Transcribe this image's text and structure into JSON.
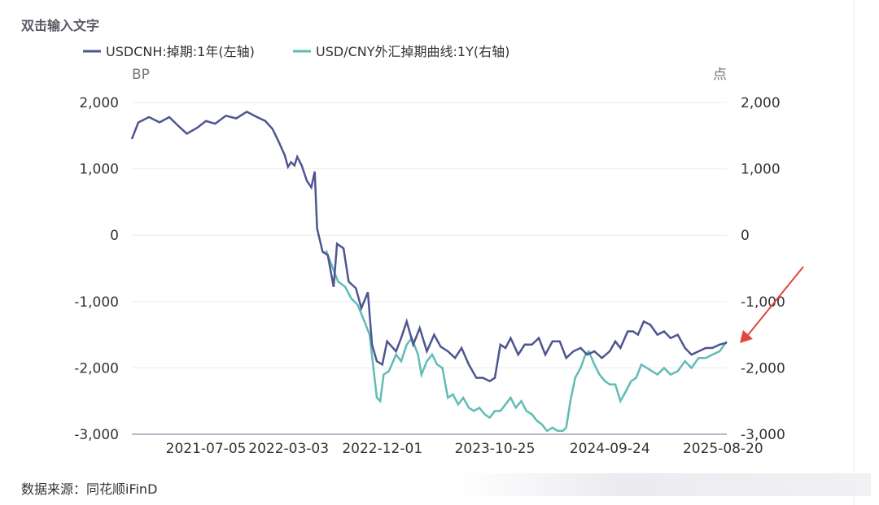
{
  "header": {
    "title": "双击输入文字"
  },
  "footer": {
    "source": "数据来源：同花顺iFinD"
  },
  "colors": {
    "series1": "#4f5590",
    "series2": "#5fbcb4",
    "arrow": "#e0473a",
    "grid": "#ececec",
    "axis": "#9aa3b5"
  },
  "chart_data": {
    "type": "line",
    "left_axis": {
      "unit": "BP",
      "ticks": [
        "2,000",
        "1,000",
        "0",
        "-1,000",
        "-2,000",
        "-3,000"
      ],
      "ylim": [
        -3000,
        2000
      ]
    },
    "right_axis": {
      "unit": "点",
      "ticks": [
        "2,000",
        "1,000",
        "0",
        "-1,000",
        "-2,000",
        "-3,000"
      ],
      "ylim": [
        -3000,
        2000
      ]
    },
    "x_ticks": [
      "2021-07-05",
      "2022-03-03",
      "2022-12-01",
      "2023-10-25",
      "2024-09-24",
      "2025-08-20"
    ],
    "x_tick_values": [
      "2021-07-05",
      "2022-03-03",
      "2022-12-01",
      "2023-10-25",
      "2024-09-24",
      "2025-08-20"
    ],
    "xlim": [
      "2020-12-01",
      "2025-08-31"
    ],
    "legend_position": "top-left",
    "series": [
      {
        "name": "USDCNH:掉期:1年(左轴)",
        "axis": "left",
        "points": [
          [
            "2020-12-01",
            1450
          ],
          [
            "2020-12-20",
            1700
          ],
          [
            "2021-01-20",
            1780
          ],
          [
            "2021-02-20",
            1700
          ],
          [
            "2021-03-20",
            1780
          ],
          [
            "2021-04-15",
            1650
          ],
          [
            "2021-05-10",
            1530
          ],
          [
            "2021-06-10",
            1620
          ],
          [
            "2021-07-05",
            1720
          ],
          [
            "2021-08-01",
            1680
          ],
          [
            "2021-09-01",
            1800
          ],
          [
            "2021-10-01",
            1760
          ],
          [
            "2021-11-01",
            1860
          ],
          [
            "2021-12-01",
            1780
          ],
          [
            "2021-12-25",
            1720
          ],
          [
            "2022-01-15",
            1600
          ],
          [
            "2022-02-01",
            1420
          ],
          [
            "2022-02-20",
            1200
          ],
          [
            "2022-03-01",
            1030
          ],
          [
            "2022-03-10",
            1100
          ],
          [
            "2022-03-20",
            1050
          ],
          [
            "2022-03-28",
            1180
          ],
          [
            "2022-04-10",
            1050
          ],
          [
            "2022-04-25",
            820
          ],
          [
            "2022-05-08",
            720
          ],
          [
            "2022-05-18",
            960
          ],
          [
            "2022-05-25",
            100
          ],
          [
            "2022-06-10",
            -250
          ],
          [
            "2022-06-25",
            -300
          ],
          [
            "2022-07-12",
            -780
          ],
          [
            "2022-07-22",
            -130
          ],
          [
            "2022-08-10",
            -200
          ],
          [
            "2022-08-25",
            -700
          ],
          [
            "2022-09-15",
            -800
          ],
          [
            "2022-10-01",
            -1100
          ],
          [
            "2022-10-20",
            -860
          ],
          [
            "2022-11-01",
            -1650
          ],
          [
            "2022-11-15",
            -1900
          ],
          [
            "2022-12-01",
            -1950
          ],
          [
            "2022-12-15",
            -1600
          ],
          [
            "2023-01-10",
            -1750
          ],
          [
            "2023-01-25",
            -1550
          ],
          [
            "2023-02-10",
            -1300
          ],
          [
            "2023-03-01",
            -1650
          ],
          [
            "2023-03-20",
            -1400
          ],
          [
            "2023-04-10",
            -1750
          ],
          [
            "2023-05-01",
            -1500
          ],
          [
            "2023-05-20",
            -1680
          ],
          [
            "2023-06-10",
            -1750
          ],
          [
            "2023-07-01",
            -1850
          ],
          [
            "2023-07-20",
            -1700
          ],
          [
            "2023-08-10",
            -1950
          ],
          [
            "2023-09-01",
            -2150
          ],
          [
            "2023-09-20",
            -2150
          ],
          [
            "2023-10-10",
            -2200
          ],
          [
            "2023-10-25",
            -2150
          ],
          [
            "2023-11-10",
            -1650
          ],
          [
            "2023-11-25",
            -1700
          ],
          [
            "2023-12-10",
            -1550
          ],
          [
            "2024-01-01",
            -1800
          ],
          [
            "2024-01-20",
            -1650
          ],
          [
            "2024-02-10",
            -1650
          ],
          [
            "2024-03-01",
            -1550
          ],
          [
            "2024-03-20",
            -1800
          ],
          [
            "2024-04-10",
            -1600
          ],
          [
            "2024-05-01",
            -1600
          ],
          [
            "2024-05-20",
            -1850
          ],
          [
            "2024-06-10",
            -1750
          ],
          [
            "2024-07-01",
            -1700
          ],
          [
            "2024-07-20",
            -1800
          ],
          [
            "2024-08-10",
            -1750
          ],
          [
            "2024-09-01",
            -1850
          ],
          [
            "2024-09-24",
            -1750
          ],
          [
            "2024-10-10",
            -1600
          ],
          [
            "2024-10-25",
            -1700
          ],
          [
            "2024-11-15",
            -1450
          ],
          [
            "2024-12-01",
            -1450
          ],
          [
            "2024-12-15",
            -1500
          ],
          [
            "2025-01-01",
            -1300
          ],
          [
            "2025-01-20",
            -1350
          ],
          [
            "2025-02-10",
            -1500
          ],
          [
            "2025-03-01",
            -1450
          ],
          [
            "2025-03-20",
            -1550
          ],
          [
            "2025-04-10",
            -1500
          ],
          [
            "2025-05-01",
            -1700
          ],
          [
            "2025-05-20",
            -1800
          ],
          [
            "2025-06-10",
            -1750
          ],
          [
            "2025-07-01",
            -1700
          ],
          [
            "2025-07-20",
            -1700
          ],
          [
            "2025-08-10",
            -1650
          ],
          [
            "2025-08-31",
            -1620
          ]
        ]
      },
      {
        "name": "USD/CNY外汇掉期曲线:1Y(右轴)",
        "axis": "right",
        "points": [
          [
            "2022-06-20",
            -230
          ],
          [
            "2022-07-10",
            -500
          ],
          [
            "2022-07-25",
            -700
          ],
          [
            "2022-08-15",
            -780
          ],
          [
            "2022-09-01",
            -950
          ],
          [
            "2022-09-20",
            -1050
          ],
          [
            "2022-10-10",
            -1300
          ],
          [
            "2022-10-25",
            -1500
          ],
          [
            "2022-11-05",
            -2000
          ],
          [
            "2022-11-15",
            -2450
          ],
          [
            "2022-11-25",
            -2500
          ],
          [
            "2022-12-05",
            -2100
          ],
          [
            "2022-12-20",
            -2050
          ],
          [
            "2023-01-10",
            -1800
          ],
          [
            "2023-01-25",
            -1900
          ],
          [
            "2023-02-10",
            -1650
          ],
          [
            "2023-02-25",
            -1550
          ],
          [
            "2023-03-15",
            -1800
          ],
          [
            "2023-03-25",
            -2100
          ],
          [
            "2023-04-10",
            -1900
          ],
          [
            "2023-04-25",
            -1800
          ],
          [
            "2023-05-10",
            -1950
          ],
          [
            "2023-05-25",
            -2000
          ],
          [
            "2023-06-10",
            -2450
          ],
          [
            "2023-06-25",
            -2400
          ],
          [
            "2023-07-10",
            -2550
          ],
          [
            "2023-07-25",
            -2450
          ],
          [
            "2023-08-10",
            -2600
          ],
          [
            "2023-08-25",
            -2650
          ],
          [
            "2023-09-10",
            -2600
          ],
          [
            "2023-09-25",
            -2700
          ],
          [
            "2023-10-10",
            -2750
          ],
          [
            "2023-10-25",
            -2650
          ],
          [
            "2023-11-10",
            -2650
          ],
          [
            "2023-11-25",
            -2550
          ],
          [
            "2023-12-10",
            -2450
          ],
          [
            "2023-12-25",
            -2600
          ],
          [
            "2024-01-10",
            -2500
          ],
          [
            "2024-01-25",
            -2650
          ],
          [
            "2024-02-10",
            -2700
          ],
          [
            "2024-02-25",
            -2800
          ],
          [
            "2024-03-10",
            -2850
          ],
          [
            "2024-03-25",
            -2950
          ],
          [
            "2024-04-10",
            -2900
          ],
          [
            "2024-04-25",
            -2950
          ],
          [
            "2024-05-10",
            -2950
          ],
          [
            "2024-05-20",
            -2900
          ],
          [
            "2024-06-01",
            -2500
          ],
          [
            "2024-06-15",
            -2150
          ],
          [
            "2024-07-01",
            -2000
          ],
          [
            "2024-07-15",
            -1800
          ],
          [
            "2024-07-25",
            -1750
          ],
          [
            "2024-08-10",
            -1950
          ],
          [
            "2024-08-25",
            -2100
          ],
          [
            "2024-09-10",
            -2200
          ],
          [
            "2024-09-24",
            -2250
          ],
          [
            "2024-10-10",
            -2250
          ],
          [
            "2024-10-25",
            -2500
          ],
          [
            "2024-11-10",
            -2350
          ],
          [
            "2024-11-25",
            -2200
          ],
          [
            "2024-12-10",
            -2150
          ],
          [
            "2024-12-25",
            -1950
          ],
          [
            "2025-01-10",
            -2000
          ],
          [
            "2025-01-25",
            -2050
          ],
          [
            "2025-02-10",
            -2100
          ],
          [
            "2025-03-01",
            -2000
          ],
          [
            "2025-03-20",
            -2100
          ],
          [
            "2025-04-10",
            -2050
          ],
          [
            "2025-05-01",
            -1900
          ],
          [
            "2025-05-20",
            -2000
          ],
          [
            "2025-06-10",
            -1850
          ],
          [
            "2025-07-01",
            -1850
          ],
          [
            "2025-07-20",
            -1800
          ],
          [
            "2025-08-10",
            -1750
          ],
          [
            "2025-08-31",
            -1600
          ]
        ]
      }
    ],
    "annotations": [
      {
        "type": "arrow",
        "points_to": [
          "2025-08-31",
          -1650
        ]
      }
    ]
  }
}
